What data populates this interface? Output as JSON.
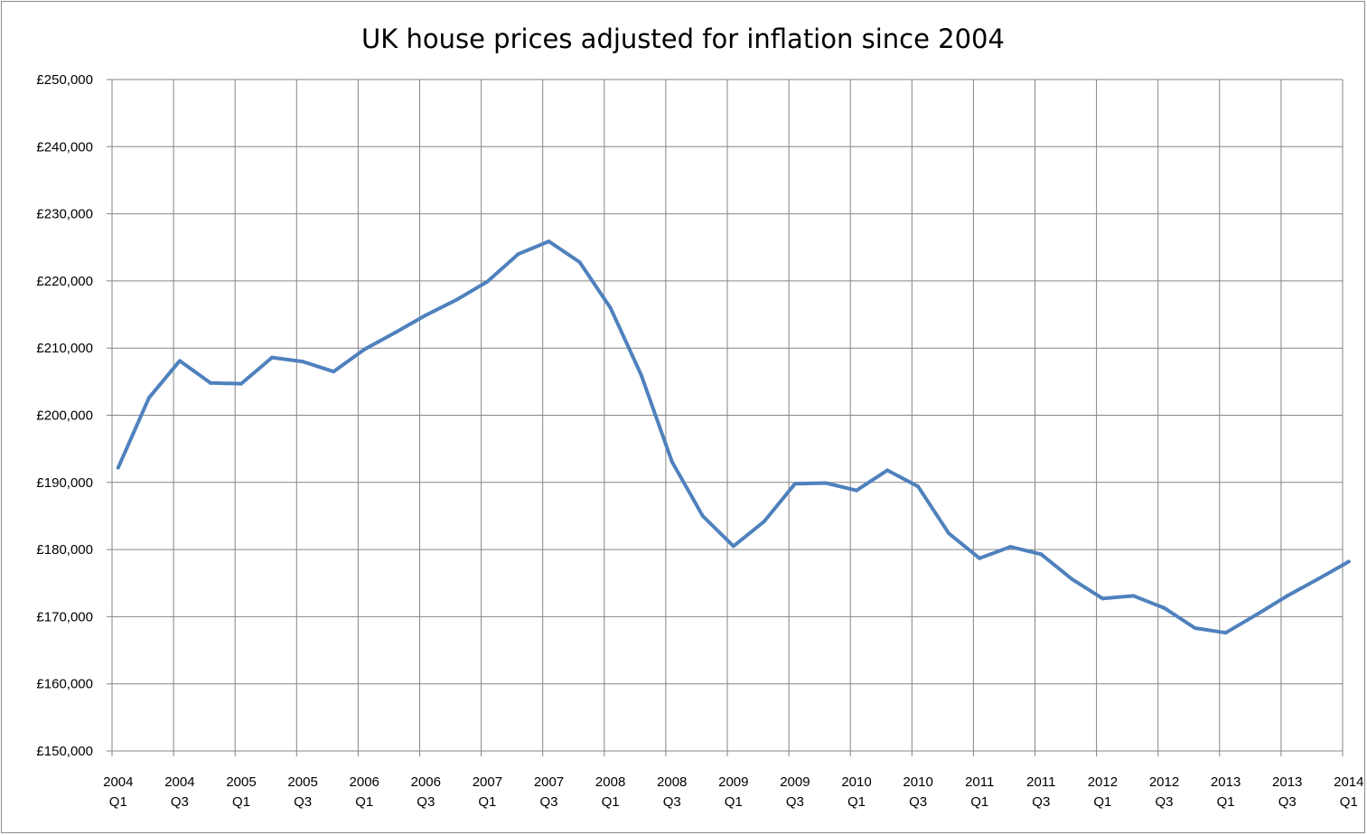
{
  "chart_data": {
    "type": "line",
    "title": "UK house prices adjusted for inflation since 2004",
    "xlabel": "",
    "ylabel": "",
    "ylim": [
      150000,
      250000
    ],
    "y_ticks": [
      150000,
      160000,
      170000,
      180000,
      190000,
      200000,
      210000,
      220000,
      230000,
      240000,
      250000
    ],
    "y_tick_labels": [
      "£150,000",
      "£160,000",
      "£170,000",
      "£180,000",
      "£190,000",
      "£200,000",
      "£210,000",
      "£220,000",
      "£230,000",
      "£240,000",
      "£250,000"
    ],
    "x_tick_labels": [
      [
        "2004",
        "Q1"
      ],
      [
        "2004",
        "Q3"
      ],
      [
        "2005",
        "Q1"
      ],
      [
        "2005",
        "Q3"
      ],
      [
        "2006",
        "Q1"
      ],
      [
        "2006",
        "Q3"
      ],
      [
        "2007",
        "Q1"
      ],
      [
        "2007",
        "Q3"
      ],
      [
        "2008",
        "Q1"
      ],
      [
        "2008",
        "Q3"
      ],
      [
        "2009",
        "Q1"
      ],
      [
        "2009",
        "Q3"
      ],
      [
        "2010",
        "Q1"
      ],
      [
        "2010",
        "Q3"
      ],
      [
        "2011",
        "Q1"
      ],
      [
        "2011",
        "Q3"
      ],
      [
        "2012",
        "Q1"
      ],
      [
        "2012",
        "Q3"
      ],
      [
        "2013",
        "Q1"
      ],
      [
        "2013",
        "Q3"
      ],
      [
        "2014",
        "Q1"
      ]
    ],
    "grid": true,
    "legend": "none",
    "series": [
      {
        "color": "#4f81bd",
        "values": [
          192200,
          202600,
          208100,
          204800,
          204700,
          208600,
          208000,
          206500,
          209800,
          212300,
          214900,
          217200,
          219900,
          224000,
          225900,
          222800,
          216000,
          206000,
          193100,
          185000,
          180500,
          184200,
          189800,
          189900,
          188800,
          191800,
          189400,
          182400,
          178700,
          180400,
          179300,
          175600,
          172700,
          173100,
          171300,
          168300,
          167600,
          170300,
          173100,
          175600,
          178200
        ]
      }
    ]
  },
  "colors": {
    "line": "#4f81bd",
    "grid": "#868686",
    "frame": "#8c8c8c"
  }
}
